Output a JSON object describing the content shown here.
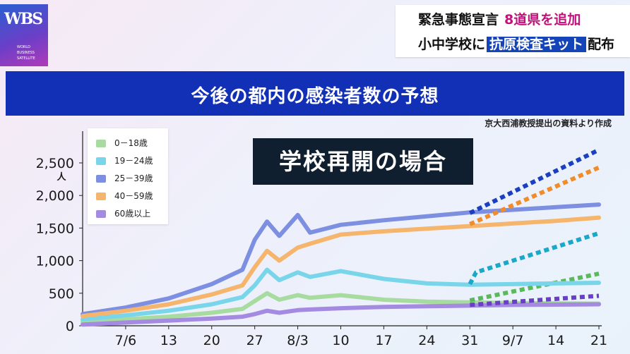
{
  "header": {
    "logo_main": "WBS",
    "logo_sub": [
      "WORLD",
      "BUSINESS",
      "SATELLITE"
    ],
    "headline_line1": "緊急事態宣言",
    "headline_line1_accent": "8道県を追加",
    "headline_line2_pre": "小中学校に",
    "headline_line2_boxed": "抗原検査キット",
    "headline_line2_post": "配布"
  },
  "chart_title": "今後の都内の感染者数の予想",
  "source_note": "京大西浦教授提出の資料より作成",
  "scenario_label": "学校再開の場合",
  "colors": {
    "title_band": "#1230b5",
    "scenario_box": "#0f1f30",
    "accent": "#c0127a"
  },
  "chart_data": {
    "type": "line",
    "ylabel": "人",
    "ylim": [
      0,
      2500
    ],
    "yticks": [
      0,
      500,
      1000,
      1500,
      2000,
      2500
    ],
    "ytick_labels": [
      "0",
      "500",
      "1,000",
      "1,500",
      "2,000",
      "2,500"
    ],
    "x_start": "2021-06-29",
    "x_end": "2021-09-21",
    "xticks": [
      "2021-07-06",
      "2021-07-13",
      "2021-07-20",
      "2021-07-27",
      "2021-08-03",
      "2021-08-10",
      "2021-08-17",
      "2021-08-24",
      "2021-08-31",
      "2021-09-07",
      "2021-09-14",
      "2021-09-21"
    ],
    "xtick_labels": [
      "7/6",
      "13",
      "20",
      "27",
      "8/3",
      "10",
      "17",
      "24",
      "31",
      "9/7",
      "14",
      "21"
    ],
    "legend_position": "top-left",
    "series": [
      {
        "name": "0－18歳",
        "color": "#a8dba0",
        "x": [
          "2021-06-29",
          "2021-07-06",
          "2021-07-13",
          "2021-07-20",
          "2021-07-25",
          "2021-07-27",
          "2021-07-29",
          "2021-07-31",
          "2021-08-03",
          "2021-08-05",
          "2021-08-10",
          "2021-08-17",
          "2021-08-24",
          "2021-08-31",
          "2021-09-07",
          "2021-09-14",
          "2021-09-21"
        ],
        "y": [
          60,
          100,
          140,
          200,
          260,
          380,
          500,
          400,
          470,
          430,
          470,
          400,
          370,
          360,
          350,
          345,
          340
        ],
        "forecast": {
          "x": [
            "2021-08-31",
            "2021-09-21"
          ],
          "y": [
            390,
            800
          ]
        }
      },
      {
        "name": "19－24歳",
        "color": "#79d5ea",
        "x": [
          "2021-06-29",
          "2021-07-06",
          "2021-07-13",
          "2021-07-20",
          "2021-07-25",
          "2021-07-27",
          "2021-07-29",
          "2021-07-31",
          "2021-08-03",
          "2021-08-05",
          "2021-08-10",
          "2021-08-17",
          "2021-08-24",
          "2021-08-31",
          "2021-09-07",
          "2021-09-14",
          "2021-09-21"
        ],
        "y": [
          100,
          160,
          230,
          330,
          440,
          620,
          860,
          700,
          820,
          750,
          840,
          720,
          650,
          630,
          640,
          650,
          660
        ],
        "forecast": {
          "x": [
            "2021-08-31",
            "2021-09-01",
            "2021-09-21"
          ],
          "y": [
            640,
            820,
            1420
          ]
        }
      },
      {
        "name": "25－39歳",
        "color": "#7d8fe0",
        "x": [
          "2021-06-29",
          "2021-07-06",
          "2021-07-13",
          "2021-07-20",
          "2021-07-25",
          "2021-07-27",
          "2021-07-29",
          "2021-07-31",
          "2021-08-03",
          "2021-08-05",
          "2021-08-10",
          "2021-08-17",
          "2021-08-24",
          "2021-08-31",
          "2021-09-07",
          "2021-09-14",
          "2021-09-21"
        ],
        "y": [
          180,
          280,
          420,
          640,
          860,
          1320,
          1600,
          1380,
          1700,
          1430,
          1550,
          1620,
          1680,
          1740,
          1780,
          1820,
          1860
        ],
        "forecast": {
          "x": [
            "2021-08-31",
            "2021-09-21"
          ],
          "y": [
            1730,
            2700
          ]
        }
      },
      {
        "name": "40－59歳",
        "color": "#f5b56d",
        "x": [
          "2021-06-29",
          "2021-07-06",
          "2021-07-13",
          "2021-07-20",
          "2021-07-25",
          "2021-07-27",
          "2021-07-29",
          "2021-07-31",
          "2021-08-03",
          "2021-08-05",
          "2021-08-10",
          "2021-08-17",
          "2021-08-24",
          "2021-08-31",
          "2021-09-07",
          "2021-09-14",
          "2021-09-21"
        ],
        "y": [
          150,
          230,
          330,
          480,
          620,
          900,
          1150,
          1000,
          1200,
          1260,
          1400,
          1450,
          1490,
          1530,
          1570,
          1610,
          1660
        ],
        "forecast": {
          "x": [
            "2021-08-31",
            "2021-09-21"
          ],
          "y": [
            1560,
            2430
          ]
        }
      },
      {
        "name": "60歳以上",
        "color": "#a48ae0",
        "x": [
          "2021-06-29",
          "2021-07-06",
          "2021-07-13",
          "2021-07-20",
          "2021-07-25",
          "2021-07-27",
          "2021-07-29",
          "2021-07-31",
          "2021-08-03",
          "2021-08-05",
          "2021-08-10",
          "2021-08-17",
          "2021-08-24",
          "2021-08-31",
          "2021-09-07",
          "2021-09-14",
          "2021-09-21"
        ],
        "y": [
          20,
          50,
          80,
          110,
          140,
          180,
          230,
          200,
          240,
          250,
          270,
          290,
          300,
          310,
          320,
          325,
          330
        ],
        "forecast": {
          "x": [
            "2021-08-31",
            "2021-09-21"
          ],
          "y": [
            320,
            460
          ]
        }
      }
    ]
  }
}
